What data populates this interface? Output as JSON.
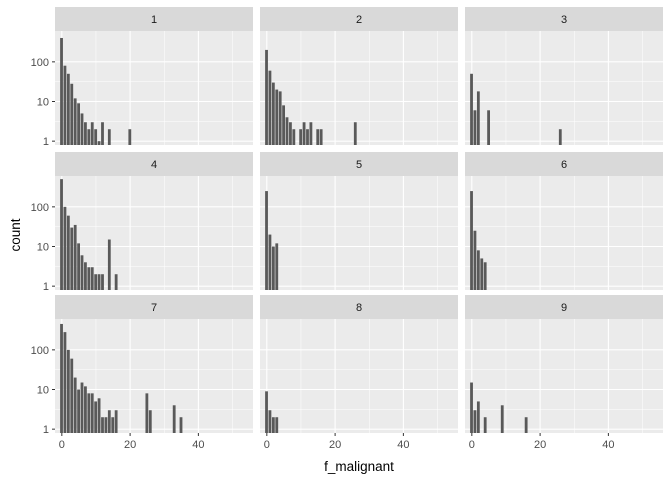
{
  "chart_data": {
    "type": "bar",
    "layout": "facet_wrap 3x3",
    "xlabel": "f_malignant",
    "ylabel": "count",
    "y_scale": "log10",
    "xlim": [
      -2,
      56
    ],
    "ylim": [
      0.8,
      600
    ],
    "x_ticks": [
      0,
      20,
      40
    ],
    "y_ticks": [
      1,
      10,
      100
    ],
    "y_tick_labels": [
      "1",
      "10",
      "100"
    ],
    "bin_width": 1,
    "colors": {
      "bar": "#595959",
      "panel_bg": "#ebebeb",
      "strip_bg": "#d9d9d9",
      "grid": "#ffffff"
    },
    "panels": [
      {
        "label": "1",
        "bars": [
          [
            0,
            400
          ],
          [
            1,
            80
          ],
          [
            2,
            50
          ],
          [
            3,
            28
          ],
          [
            4,
            12
          ],
          [
            5,
            9
          ],
          [
            6,
            5
          ],
          [
            7,
            3
          ],
          [
            8,
            2
          ],
          [
            9,
            3
          ],
          [
            10,
            2
          ],
          [
            11,
            1
          ],
          [
            12,
            3
          ],
          [
            14,
            2
          ],
          [
            20,
            2
          ]
        ]
      },
      {
        "label": "2",
        "bars": [
          [
            0,
            200
          ],
          [
            1,
            60
          ],
          [
            2,
            30
          ],
          [
            3,
            20
          ],
          [
            4,
            18
          ],
          [
            5,
            8
          ],
          [
            6,
            4
          ],
          [
            7,
            3
          ],
          [
            8,
            2
          ],
          [
            10,
            2
          ],
          [
            11,
            3
          ],
          [
            12,
            2
          ],
          [
            13,
            3
          ],
          [
            15,
            2
          ],
          [
            16,
            2
          ],
          [
            26,
            3
          ]
        ]
      },
      {
        "label": "3",
        "bars": [
          [
            0,
            50
          ],
          [
            1,
            6
          ],
          [
            2,
            18
          ],
          [
            5,
            6
          ],
          [
            26,
            2
          ]
        ]
      },
      {
        "label": "4",
        "bars": [
          [
            0,
            500
          ],
          [
            1,
            100
          ],
          [
            2,
            60
          ],
          [
            3,
            30
          ],
          [
            4,
            35
          ],
          [
            5,
            12
          ],
          [
            6,
            6
          ],
          [
            7,
            4
          ],
          [
            8,
            3
          ],
          [
            9,
            3
          ],
          [
            10,
            2
          ],
          [
            11,
            2
          ],
          [
            12,
            2
          ],
          [
            14,
            15
          ],
          [
            16,
            2
          ]
        ]
      },
      {
        "label": "5",
        "bars": [
          [
            0,
            250
          ],
          [
            1,
            20
          ],
          [
            2,
            10
          ],
          [
            3,
            12
          ]
        ]
      },
      {
        "label": "6",
        "bars": [
          [
            0,
            250
          ],
          [
            1,
            25
          ],
          [
            2,
            8
          ],
          [
            3,
            5
          ],
          [
            4,
            4
          ]
        ]
      },
      {
        "label": "7",
        "bars": [
          [
            0,
            450
          ],
          [
            1,
            280
          ],
          [
            2,
            100
          ],
          [
            3,
            60
          ],
          [
            4,
            20
          ],
          [
            5,
            10
          ],
          [
            6,
            15
          ],
          [
            7,
            12
          ],
          [
            8,
            8
          ],
          [
            9,
            8
          ],
          [
            10,
            5
          ],
          [
            11,
            6
          ],
          [
            12,
            2
          ],
          [
            13,
            2
          ],
          [
            14,
            3
          ],
          [
            15,
            2
          ],
          [
            16,
            3
          ],
          [
            25,
            8
          ],
          [
            26,
            3
          ],
          [
            33,
            4
          ],
          [
            35,
            2
          ]
        ]
      },
      {
        "label": "8",
        "bars": [
          [
            0,
            9
          ],
          [
            1,
            3
          ],
          [
            2,
            2
          ],
          [
            3,
            2
          ]
        ]
      },
      {
        "label": "9",
        "bars": [
          [
            0,
            15
          ],
          [
            1,
            3
          ],
          [
            2,
            5
          ],
          [
            4,
            2
          ],
          [
            9,
            4
          ],
          [
            16,
            2
          ]
        ]
      }
    ]
  }
}
